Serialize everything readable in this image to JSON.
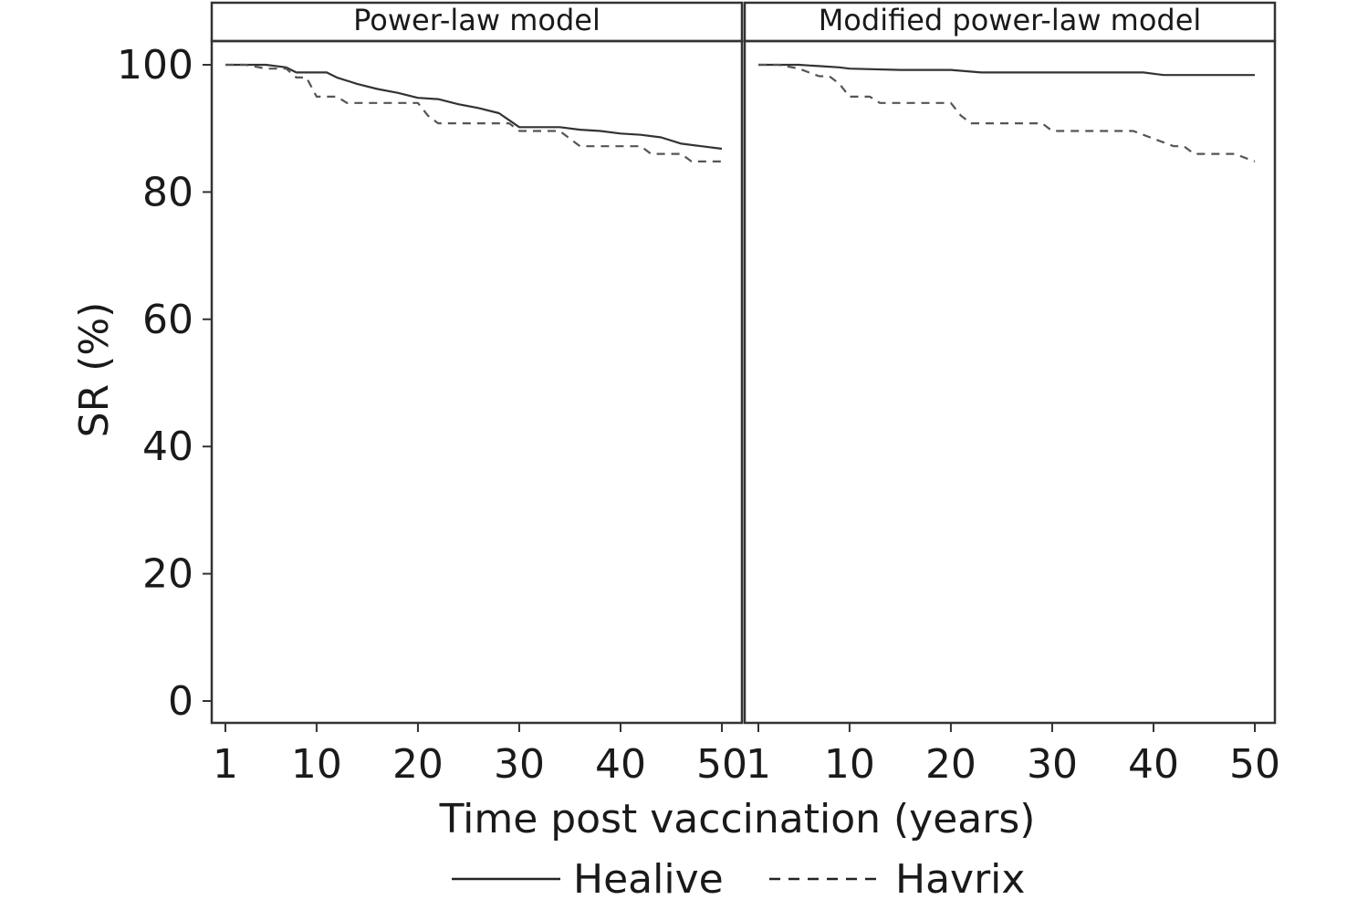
{
  "chart_data": {
    "type": "line",
    "ylabel": "SR (%)",
    "xlabel": "Time post vaccination (years)",
    "ylim": [
      0,
      100
    ],
    "xlim": [
      1,
      50
    ],
    "yticks": [
      0,
      20,
      40,
      60,
      80,
      100
    ],
    "xticks": [
      1,
      10,
      20,
      30,
      40,
      50
    ],
    "grid": false,
    "legend_position": "bottom",
    "legend": [
      {
        "name": "Healive",
        "style": "solid"
      },
      {
        "name": "Havrix",
        "style": "dashed"
      }
    ],
    "panels": [
      {
        "title": "Power-law model",
        "series": [
          {
            "name": "Healive",
            "style": "solid",
            "x": [
              1,
              3,
              5,
              7,
              8,
              10,
              11,
              12,
              14,
              16,
              18,
              20,
              22,
              24,
              26,
              28,
              30,
              32,
              34,
              36,
              38,
              40,
              42,
              44,
              46,
              48,
              50
            ],
            "y": [
              100,
              100,
              100,
              99.6,
              98.8,
              98.8,
              98.8,
              98,
              97,
              96.2,
              95.6,
              94.8,
              94.6,
              93.8,
              93.2,
              92.4,
              90.2,
              90.2,
              90.2,
              89.8,
              89.6,
              89.2,
              89,
              88.6,
              87.6,
              87.2,
              86.8
            ]
          },
          {
            "name": "Havrix",
            "style": "dashed",
            "x": [
              1,
              3,
              5,
              7,
              8,
              9,
              10,
              11,
              12,
              13,
              14,
              18,
              19,
              20,
              21,
              22,
              26,
              28,
              29,
              30,
              31,
              34,
              35,
              36,
              38,
              40,
              42,
              43,
              44,
              46,
              47,
              48,
              50
            ],
            "y": [
              100,
              100,
              99.4,
              99.4,
              98,
              98,
              95,
              95,
              95,
              94,
              94,
              94,
              94,
              94,
              92,
              90.8,
              90.8,
              90.8,
              90.8,
              89.6,
              89.6,
              89.6,
              88.4,
              87.2,
              87.2,
              87.2,
              87.2,
              86,
              86,
              86,
              84.8,
              84.8,
              84.8
            ]
          }
        ]
      },
      {
        "title": "Modified power-law model",
        "series": [
          {
            "name": "Healive",
            "style": "solid",
            "x": [
              1,
              3,
              5,
              7,
              9,
              10,
              15,
              20,
              23,
              30,
              35,
              39,
              41,
              45,
              50
            ],
            "y": [
              100,
              100,
              100,
              99.8,
              99.6,
              99.4,
              99.2,
              99.2,
              98.8,
              98.8,
              98.8,
              98.8,
              98.4,
              98.4,
              98.4
            ]
          },
          {
            "name": "Havrix",
            "style": "dashed",
            "x": [
              1,
              3,
              5,
              7,
              8,
              9,
              10,
              11,
              12,
              13,
              14,
              18,
              19,
              20,
              21,
              22,
              26,
              28,
              29,
              30,
              31,
              34,
              35,
              36,
              38,
              40,
              42,
              43,
              44,
              46,
              47,
              48,
              50
            ],
            "y": [
              100,
              100,
              99.4,
              98.2,
              98.2,
              97,
              95,
              95,
              95,
              94,
              94,
              94,
              94,
              94,
              92,
              90.8,
              90.8,
              90.8,
              90.8,
              89.6,
              89.6,
              89.6,
              89.6,
              89.6,
              89.6,
              88.4,
              87.2,
              87.2,
              86,
              86,
              86,
              86,
              84.8
            ]
          }
        ]
      }
    ]
  }
}
